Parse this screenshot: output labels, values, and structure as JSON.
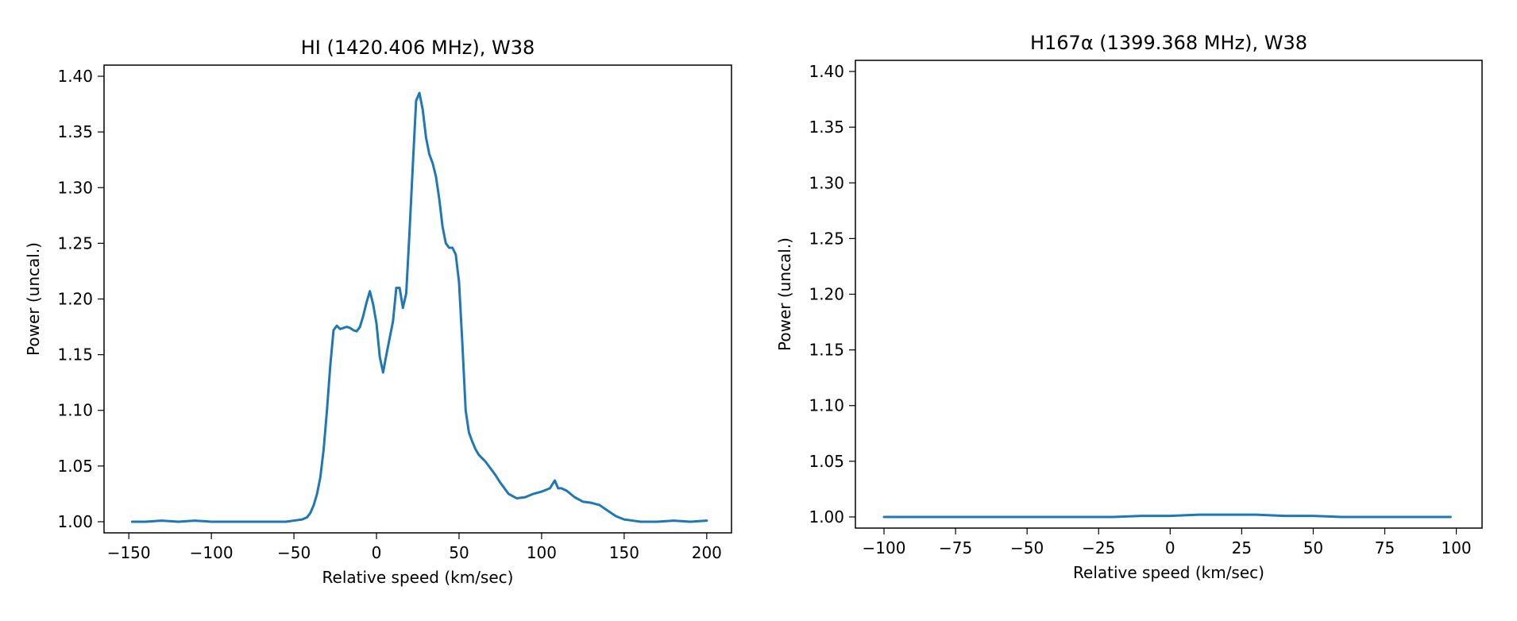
{
  "chart_data": [
    {
      "type": "line",
      "title": "HI (1420.406 MHz), W38",
      "xlabel": "Relative speed (km/sec)",
      "ylabel": "Power (uncal.)",
      "xlim": [
        -165,
        215
      ],
      "ylim": [
        0.99,
        1.41
      ],
      "xticks": [
        -150,
        -100,
        -50,
        0,
        50,
        100,
        150,
        200
      ],
      "xtick_labels": [
        "−150",
        "−100",
        "−50",
        "0",
        "50",
        "100",
        "150",
        "200"
      ],
      "yticks": [
        1.0,
        1.05,
        1.1,
        1.15,
        1.2,
        1.25,
        1.3,
        1.35,
        1.4
      ],
      "ytick_labels": [
        "1.00",
        "1.05",
        "1.10",
        "1.15",
        "1.20",
        "1.25",
        "1.30",
        "1.35",
        "1.40"
      ],
      "grid": false,
      "line_color": "#1f77b4",
      "series": [
        {
          "x": [
            -148,
            -140,
            -130,
            -120,
            -110,
            -100,
            -90,
            -80,
            -70,
            -60,
            -55,
            -50,
            -45,
            -42,
            -40,
            -38,
            -36,
            -34,
            -32,
            -30,
            -28,
            -26,
            -24,
            -22,
            -20,
            -18,
            -16,
            -14,
            -12,
            -10,
            -8,
            -6,
            -4,
            -2,
            0,
            2,
            4,
            6,
            8,
            10,
            12,
            14,
            16,
            18,
            20,
            22,
            24,
            26,
            28,
            30,
            32,
            34,
            36,
            38,
            40,
            42,
            44,
            46,
            48,
            50,
            52,
            54,
            56,
            58,
            60,
            62,
            64,
            66,
            68,
            70,
            72,
            75,
            80,
            85,
            90,
            95,
            100,
            105,
            108,
            110,
            112,
            115,
            120,
            125,
            130,
            135,
            140,
            145,
            150,
            155,
            160,
            170,
            180,
            190,
            200
          ],
          "y": [
            1.0,
            1.0,
            1.001,
            1.0,
            1.001,
            1.0,
            1.0,
            1.0,
            1.0,
            1.0,
            1.0,
            1.001,
            1.002,
            1.004,
            1.008,
            1.015,
            1.025,
            1.04,
            1.065,
            1.1,
            1.14,
            1.172,
            1.176,
            1.173,
            1.174,
            1.175,
            1.174,
            1.172,
            1.171,
            1.175,
            1.185,
            1.197,
            1.207,
            1.195,
            1.178,
            1.148,
            1.134,
            1.15,
            1.165,
            1.18,
            1.21,
            1.21,
            1.192,
            1.205,
            1.26,
            1.32,
            1.378,
            1.385,
            1.37,
            1.345,
            1.33,
            1.322,
            1.31,
            1.29,
            1.265,
            1.25,
            1.246,
            1.246,
            1.24,
            1.215,
            1.16,
            1.1,
            1.08,
            1.072,
            1.065,
            1.06,
            1.057,
            1.054,
            1.05,
            1.046,
            1.042,
            1.035,
            1.025,
            1.021,
            1.022,
            1.025,
            1.027,
            1.03,
            1.037,
            1.03,
            1.03,
            1.028,
            1.022,
            1.018,
            1.017,
            1.015,
            1.01,
            1.005,
            1.002,
            1.001,
            1.0,
            1.0,
            1.001,
            1.0,
            1.001
          ]
        }
      ]
    },
    {
      "type": "line",
      "title": "H167α (1399.368 MHz), W38",
      "xlabel": "Relative speed (km/sec)",
      "ylabel": "Power (uncal.)",
      "xlim": [
        -110,
        109
      ],
      "ylim": [
        0.99,
        1.41
      ],
      "xticks": [
        -100,
        -75,
        -50,
        -25,
        0,
        25,
        50,
        75,
        100
      ],
      "xtick_labels": [
        "−100",
        "−75",
        "−50",
        "−25",
        "0",
        "25",
        "50",
        "75",
        "100"
      ],
      "yticks": [
        1.0,
        1.05,
        1.1,
        1.15,
        1.2,
        1.25,
        1.3,
        1.35,
        1.4
      ],
      "ytick_labels": [
        "1.00",
        "1.05",
        "1.10",
        "1.15",
        "1.20",
        "1.25",
        "1.30",
        "1.35",
        "1.40"
      ],
      "grid": false,
      "line_color": "#1f77b4",
      "series": [
        {
          "x": [
            -100,
            -90,
            -80,
            -70,
            -60,
            -50,
            -40,
            -30,
            -20,
            -10,
            0,
            10,
            20,
            30,
            40,
            50,
            60,
            70,
            80,
            90,
            98
          ],
          "y": [
            1.0,
            1.0,
            1.0,
            1.0,
            1.0,
            1.0,
            1.0,
            1.0,
            1.0,
            1.001,
            1.001,
            1.002,
            1.002,
            1.002,
            1.001,
            1.001,
            1.0,
            1.0,
            1.0,
            1.0,
            1.0
          ]
        }
      ]
    }
  ]
}
